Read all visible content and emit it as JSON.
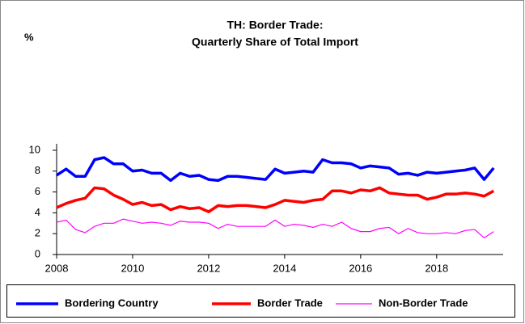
{
  "chart_data": {
    "type": "line",
    "title": [
      "TH: Border Trade:",
      "Quarterly Share of Total Import"
    ],
    "ylabel": "%",
    "x": [
      2008,
      2008.25,
      2008.5,
      2008.75,
      2009,
      2009.25,
      2009.5,
      2009.75,
      2010,
      2010.25,
      2010.5,
      2010.75,
      2011,
      2011.25,
      2011.5,
      2011.75,
      2012,
      2012.25,
      2012.5,
      2012.75,
      2013,
      2013.25,
      2013.5,
      2013.75,
      2014,
      2014.25,
      2014.5,
      2014.75,
      2015,
      2015.25,
      2015.5,
      2015.75,
      2016,
      2016.25,
      2016.5,
      2016.75,
      2017,
      2017.25,
      2017.5,
      2017.75,
      2018,
      2018.25,
      2018.5,
      2018.75,
      2019,
      2019.25,
      2019.5
    ],
    "series": [
      {
        "name": "Bordering Country",
        "color": "#0000ff",
        "width": 3.5,
        "values": [
          7.6,
          8.2,
          7.5,
          7.5,
          9.1,
          9.3,
          8.7,
          8.7,
          8.0,
          8.1,
          7.8,
          7.8,
          7.1,
          7.8,
          7.5,
          7.6,
          7.2,
          7.1,
          7.5,
          7.5,
          7.4,
          7.3,
          7.2,
          8.2,
          7.8,
          7.9,
          8.0,
          7.9,
          9.1,
          8.8,
          8.8,
          8.7,
          8.3,
          8.5,
          8.4,
          8.3,
          7.7,
          7.8,
          7.6,
          7.9,
          7.8,
          7.9,
          8.0,
          8.1,
          8.3,
          7.2,
          8.3
        ]
      },
      {
        "name": "Border Trade",
        "color": "#ff0000",
        "width": 3.5,
        "values": [
          4.5,
          4.9,
          5.2,
          5.4,
          6.4,
          6.3,
          5.7,
          5.3,
          4.8,
          5.0,
          4.7,
          4.8,
          4.3,
          4.6,
          4.4,
          4.5,
          4.1,
          4.7,
          4.6,
          4.7,
          4.7,
          4.6,
          4.5,
          4.8,
          5.2,
          5.1,
          5.0,
          5.2,
          5.3,
          6.1,
          6.1,
          5.9,
          6.2,
          6.1,
          6.4,
          5.9,
          5.8,
          5.7,
          5.7,
          5.3,
          5.5,
          5.8,
          5.8,
          5.9,
          5.8,
          5.6,
          6.1
        ]
      },
      {
        "name": "Non-Border Trade",
        "color": "#ff00ff",
        "width": 1.2,
        "values": [
          3.1,
          3.3,
          2.4,
          2.1,
          2.7,
          3.0,
          3.0,
          3.4,
          3.2,
          3.0,
          3.1,
          3.0,
          2.8,
          3.2,
          3.1,
          3.1,
          3.0,
          2.5,
          2.9,
          2.7,
          2.7,
          2.7,
          2.7,
          3.3,
          2.7,
          2.9,
          2.8,
          2.6,
          2.9,
          2.7,
          3.1,
          2.5,
          2.2,
          2.2,
          2.5,
          2.6,
          2.0,
          2.5,
          2.1,
          2.0,
          2.0,
          2.1,
          2.0,
          2.3,
          2.4,
          1.6,
          2.2
        ]
      }
    ],
    "xlim": [
      2008,
      2019.75
    ],
    "xticks": [
      2008,
      2010,
      2012,
      2014,
      2016,
      2018
    ],
    "ylim": [
      0,
      10
    ],
    "yticks": [
      0,
      2,
      4,
      6,
      8,
      10
    ],
    "legend": "bottom"
  }
}
